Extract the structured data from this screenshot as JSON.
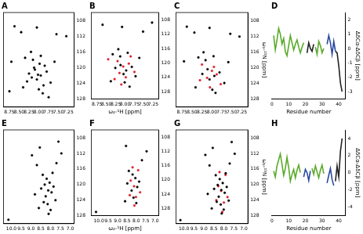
{
  "chart_data": [
    {
      "type": "scatter",
      "title": "A",
      "grid": false,
      "marker": "circle",
      "xlim": [
        8.9,
        7.1
      ],
      "xticks": [
        8.75,
        {
          "value": 8.5,
          "label": "8.50"
        },
        8.25,
        {
          "value": 8.0,
          "label": "8.00"
        },
        7.75,
        {
          "value": 7.5,
          "label": "7.50"
        },
        7.25
      ],
      "ylim": [
        130,
        106
      ],
      "yticks": [
        108,
        112,
        116,
        120,
        124,
        128
      ],
      "series": [
        {
          "color": "#000000",
          "x": [
            8.62,
            8.45,
            8.05,
            7.55,
            7.3,
            8.7,
            8.35,
            8.15,
            7.95,
            7.85,
            8.1,
            8.25,
            7.95,
            8.05,
            7.8,
            8.3,
            7.7,
            8.4,
            8.0,
            7.9,
            8.75,
            7.6,
            8.2,
            7.75,
            8.12,
            8.02,
            7.98,
            8.18,
            7.88
          ],
          "values": [
            109.5,
            111.0,
            109.8,
            111.5,
            112.0,
            118.5,
            117.5,
            118.0,
            117.0,
            119.5,
            120.5,
            121.5,
            122.0,
            123.0,
            121.0,
            123.5,
            123.8,
            125.0,
            125.5,
            126.5,
            126.0,
            118.5,
            116.0,
            127.5,
            120.0,
            121.8,
            119.0,
            122.5,
            124.5
          ]
        }
      ]
    },
    {
      "type": "scatter",
      "title": "B",
      "grid": false,
      "marker": "circle",
      "xlabel": "ω₂-¹H [ppm]",
      "xlim": [
        8.9,
        7.1
      ],
      "xticks": [
        8.75,
        {
          "value": 8.5,
          "label": "8.50"
        },
        8.25,
        {
          "value": 8.0,
          "label": "8.00"
        },
        7.75,
        {
          "value": 7.5,
          "label": "7.50"
        },
        7.25
      ],
      "ylim": [
        130,
        106
      ],
      "yticks": [
        108,
        112,
        116,
        120,
        124,
        128
      ],
      "series": [
        {
          "color": "#000000",
          "x": [
            8.6,
            8.08,
            7.52,
            8.33,
            8.13,
            7.93,
            8.12,
            8.26,
            7.97,
            8.04,
            7.82,
            8.38,
            8.01,
            7.88,
            7.72,
            8.18,
            7.62,
            7.28
          ],
          "values": [
            109.4,
            110.0,
            111.3,
            117.6,
            118.2,
            117.2,
            120.6,
            121.4,
            122.1,
            123.1,
            121.1,
            125.1,
            125.4,
            126.6,
            123.7,
            116.2,
            118.6,
            108.8
          ]
        },
        {
          "color": "#e0202a",
          "x": [
            8.45,
            8.2,
            8.05,
            7.9,
            8.15,
            7.98,
            8.28,
            7.75,
            8.1,
            7.85
          ],
          "values": [
            119.0,
            119.5,
            121.0,
            120.2,
            122.8,
            124.0,
            124.5,
            122.5,
            126.0,
            118.2
          ]
        }
      ]
    },
    {
      "type": "scatter",
      "title": "C",
      "grid": false,
      "marker": "circle",
      "ylabel": "ω₁-¹⁵N [ppm]",
      "xlim": [
        8.9,
        7.1
      ],
      "xticks": [
        8.75,
        {
          "value": 8.5,
          "label": "8.50"
        },
        8.25,
        {
          "value": 8.0,
          "label": "8.00"
        },
        7.75,
        {
          "value": 7.5,
          "label": "7.50"
        },
        7.25
      ],
      "ylim": [
        130,
        106
      ],
      "yticks": [
        108,
        112,
        116,
        120,
        124,
        128
      ],
      "series": [
        {
          "color": "#000000",
          "x": [
            8.63,
            8.44,
            8.06,
            7.54,
            7.31,
            8.34,
            8.16,
            7.96,
            8.11,
            8.24,
            7.94,
            8.06,
            7.81,
            8.41,
            7.99,
            7.91,
            7.69,
            8.21,
            8.7,
            7.59
          ],
          "values": [
            109.6,
            111.1,
            109.9,
            111.4,
            112.1,
            117.4,
            118.1,
            117.1,
            120.4,
            121.6,
            122.1,
            123.0,
            121.2,
            125.0,
            125.6,
            126.4,
            123.9,
            116.1,
            118.4,
            118.6
          ]
        },
        {
          "color": "#e0202a",
          "x": [
            8.25,
            8.0,
            8.12,
            7.88,
            8.3,
            7.78,
            8.05,
            7.95
          ],
          "values": [
            119.2,
            120.8,
            122.6,
            121.7,
            123.2,
            124.2,
            125.0,
            119.8
          ]
        }
      ]
    },
    {
      "type": "line",
      "title": "D",
      "grid": false,
      "xlabel": "Residue number",
      "ylabel": "ΔδCα-ΔδCβ [ppm]",
      "xlim": [
        0,
        44
      ],
      "xticks": [
        0,
        10,
        20,
        30,
        40
      ],
      "ylim": [
        -3.5,
        2.5
      ],
      "yticks": [
        -3,
        -2,
        -1,
        0,
        1,
        2
      ],
      "x": [
        1,
        2,
        3,
        4,
        5,
        6,
        7,
        8,
        9,
        10,
        11,
        12,
        13,
        14,
        15,
        16,
        17,
        18,
        19,
        20,
        21,
        22,
        23,
        24,
        25,
        26,
        27,
        28,
        29,
        30,
        31,
        32,
        33,
        34,
        35,
        36,
        37,
        38,
        39,
        40,
        41,
        42
      ],
      "series": [
        {
          "color": "#5aaa2a",
          "values": [
            0.9,
            -0.1,
            0.6,
            1.4,
            1.0,
            0.3,
            0.7,
            -0.2,
            -0.5,
            0.2,
            0.9,
            0.4,
            -0.1,
            0.3,
            0.6,
            0.1,
            -0.3,
            0.1,
            0.4,
            null,
            null,
            null,
            null,
            null,
            null,
            0.1,
            -0.4,
            0.5,
            0.2,
            -0.3,
            0.0,
            null,
            null,
            null,
            null,
            null,
            null,
            null,
            null,
            null,
            null,
            null
          ]
        },
        {
          "color": "#222222",
          "values": [
            null,
            null,
            null,
            null,
            null,
            null,
            null,
            null,
            null,
            null,
            null,
            null,
            null,
            null,
            null,
            null,
            null,
            null,
            null,
            null,
            -0.3,
            0.4,
            0.0,
            -0.2,
            0.3,
            null,
            null,
            null,
            null,
            null,
            null,
            null,
            null,
            null,
            null,
            null,
            null,
            -0.2,
            -0.3,
            -1.2,
            -2.4,
            -3.0
          ]
        },
        {
          "color": "#2a4aa0",
          "values": [
            null,
            null,
            null,
            null,
            null,
            null,
            null,
            null,
            null,
            null,
            null,
            null,
            null,
            null,
            null,
            null,
            null,
            null,
            null,
            null,
            null,
            null,
            null,
            null,
            null,
            null,
            null,
            null,
            null,
            null,
            null,
            null,
            0.3,
            0.9,
            0.4,
            -0.4,
            0.5,
            -0.2,
            null,
            null,
            null,
            null
          ]
        }
      ]
    },
    {
      "type": "scatter",
      "title": "E",
      "grid": false,
      "marker": "circle",
      "xlim": [
        10.4,
        6.8
      ],
      "xticks": [
        {
          "value": 10,
          "label": "10.0"
        },
        9.5,
        {
          "value": 9,
          "label": "9.0"
        },
        8.5,
        {
          "value": 8,
          "label": "8.0"
        },
        7.5,
        {
          "value": 7,
          "label": "7.0"
        }
      ],
      "ylim": [
        130,
        106
      ],
      "yticks": [
        108,
        112,
        116,
        120,
        124,
        128
      ],
      "series": [
        {
          "color": "#000000",
          "x": [
            10.15,
            8.95,
            8.7,
            8.55,
            8.4,
            8.3,
            8.2,
            8.12,
            8.05,
            7.95,
            7.85,
            7.75,
            8.25,
            8.15,
            8.0,
            7.9,
            8.35,
            8.48,
            7.7,
            8.1,
            7.6,
            8.6,
            7.45,
            8.8
          ],
          "values": [
            129.0,
            112.5,
            115.0,
            110.5,
            117.5,
            120.0,
            118.5,
            121.5,
            119.5,
            122.0,
            120.5,
            124.0,
            123.0,
            125.0,
            126.5,
            117.0,
            124.5,
            121.0,
            114.5,
            127.5,
            109.0,
            126.0,
            112.0,
            122.5
          ]
        }
      ]
    },
    {
      "type": "scatter",
      "title": "F",
      "grid": false,
      "marker": "circle",
      "xlabel": "ω₂-¹H [ppm]",
      "xlim": [
        10.4,
        6.8
      ],
      "xticks": [
        {
          "value": 10,
          "label": "10.0"
        },
        9.5,
        {
          "value": 9,
          "label": "9.0"
        },
        8.5,
        {
          "value": 8,
          "label": "8.0"
        },
        7.5,
        {
          "value": 7,
          "label": "7.0"
        }
      ],
      "ylim": [
        130,
        106
      ],
      "yticks": [
        108,
        112,
        116,
        120,
        124,
        128
      ],
      "series": [
        {
          "color": "#000000",
          "x": [
            10.15,
            8.55,
            8.4,
            8.2,
            8.05,
            7.95,
            8.25,
            8.0,
            8.48,
            7.7,
            8.6,
            7.45,
            8.15,
            7.85
          ],
          "values": [
            129.0,
            110.5,
            117.5,
            118.5,
            119.5,
            122.0,
            123.0,
            126.5,
            121.0,
            114.5,
            126.0,
            112.0,
            125.0,
            120.5
          ]
        },
        {
          "color": "#e0202a",
          "x": [
            8.3,
            8.12,
            7.9,
            8.35,
            8.1,
            7.8,
            8.2,
            8.02
          ],
          "values": [
            120.2,
            121.8,
            117.3,
            124.3,
            127.2,
            123.5,
            116.5,
            124.8
          ]
        }
      ]
    },
    {
      "type": "scatter",
      "title": "G",
      "grid": false,
      "marker": "circle",
      "ylabel": "ω₁-¹⁵N [ppm]",
      "xlim": [
        10.4,
        6.8
      ],
      "xticks": [
        {
          "value": 10,
          "label": "10.0"
        },
        9.5,
        {
          "value": 9,
          "label": "9.0"
        },
        8.5,
        {
          "value": 8,
          "label": "8.0"
        },
        7.5,
        {
          "value": 7,
          "label": "7.0"
        }
      ],
      "ylim": [
        130,
        106
      ],
      "yticks": [
        108,
        112,
        116,
        120,
        124,
        128
      ],
      "series": [
        {
          "color": "#000000",
          "x": [
            10.18,
            8.93,
            8.72,
            8.56,
            8.41,
            8.31,
            8.21,
            8.13,
            8.06,
            7.96,
            7.86,
            7.76,
            8.26,
            8.16,
            8.01,
            7.91,
            8.36,
            8.49,
            7.71,
            8.11,
            7.61,
            8.61,
            7.46,
            8.81
          ],
          "values": [
            129.1,
            112.4,
            115.1,
            110.6,
            117.6,
            120.1,
            118.6,
            121.4,
            119.6,
            122.1,
            120.6,
            124.1,
            123.1,
            125.1,
            126.4,
            117.1,
            124.4,
            121.1,
            114.6,
            127.4,
            109.1,
            126.1,
            112.1,
            122.4
          ]
        },
        {
          "color": "#e0202a",
          "x": [
            8.28,
            8.14,
            7.92,
            8.38,
            8.08,
            7.82,
            8.22,
            8.0
          ],
          "values": [
            120.4,
            121.6,
            117.5,
            124.0,
            127.0,
            123.2,
            116.8,
            124.6
          ]
        }
      ]
    },
    {
      "type": "line",
      "title": "H",
      "grid": false,
      "xlabel": "Residue number",
      "ylabel": "ΔδCα-ΔδCβ [ppm]",
      "xlim": [
        0,
        44
      ],
      "xticks": [
        0,
        10,
        20,
        30,
        40
      ],
      "ylim": [
        -5,
        5
      ],
      "yticks": [
        -4,
        -2,
        0,
        2,
        4
      ],
      "x": [
        1,
        2,
        3,
        4,
        5,
        6,
        7,
        8,
        9,
        10,
        11,
        12,
        13,
        14,
        15,
        16,
        17,
        18,
        19,
        20,
        21,
        22,
        23,
        24,
        25,
        26,
        27,
        28,
        29,
        30,
        31,
        32,
        33,
        34,
        35,
        36,
        37,
        38,
        39,
        40,
        41,
        42
      ],
      "series": [
        {
          "color": "#5aaa2a",
          "values": [
            0.2,
            -0.5,
            0.8,
            1.5,
            2.2,
            1.0,
            -0.3,
            0.5,
            1.8,
            0.6,
            -1.0,
            -0.2,
            0.4,
            -0.6,
            0.3,
            0.9,
            0.0,
            null,
            null,
            null,
            null,
            null,
            null,
            0.5,
            -0.2,
            0.8,
            0.1,
            -0.6,
            0.3,
            0.9,
            -0.1,
            null,
            null,
            null,
            null,
            null,
            null,
            null,
            null,
            null,
            null,
            null
          ]
        },
        {
          "color": "#2a4aa0",
          "values": [
            null,
            null,
            null,
            null,
            null,
            null,
            null,
            null,
            null,
            null,
            null,
            null,
            null,
            null,
            null,
            null,
            null,
            null,
            -0.5,
            0.4,
            0.0,
            -0.9,
            0.2,
            null,
            null,
            null,
            null,
            null,
            null,
            null,
            null,
            null,
            -1.2,
            -0.3,
            0.5,
            -0.8,
            -1.5,
            null,
            null,
            null,
            null,
            null
          ]
        },
        {
          "color": "#222222",
          "values": [
            null,
            null,
            null,
            null,
            null,
            null,
            null,
            null,
            null,
            null,
            null,
            null,
            null,
            null,
            null,
            null,
            null,
            null,
            null,
            null,
            null,
            null,
            null,
            null,
            null,
            null,
            null,
            null,
            null,
            null,
            null,
            null,
            null,
            null,
            null,
            null,
            null,
            -1.0,
            0.8,
            -0.5,
            2.5,
            4.0
          ]
        }
      ]
    }
  ]
}
